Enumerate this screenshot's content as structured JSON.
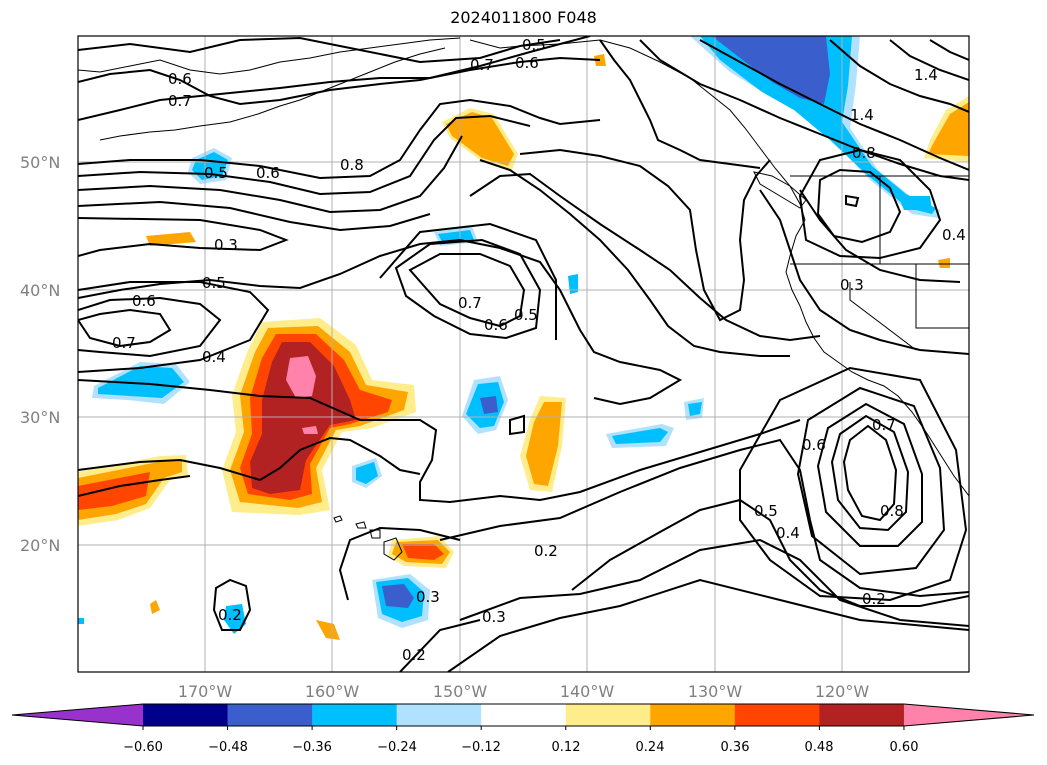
{
  "title": "2024011800 F048",
  "map": {
    "lat_labels": [
      "50°N",
      "40°N",
      "30°N",
      "20°N"
    ],
    "lon_labels": [
      "170°W",
      "160°W",
      "150°W",
      "140°W",
      "130°W",
      "120°W"
    ],
    "contour_labels": [
      "0.5",
      "0.6",
      "0.7",
      "0.6",
      "0.7",
      "0.5",
      "0.6",
      "0.8",
      "1.4",
      "1.4",
      "0.8",
      "0.4",
      "0.3",
      "0.5",
      "0.6",
      "0.7",
      "0.4",
      "0.7",
      "0.6",
      "0.5",
      "0.3",
      "0.6",
      "0.7",
      "0.5",
      "0.8",
      "0.4",
      "0.2",
      "0.2",
      "0.3",
      "0.3",
      "0.2",
      "0.2"
    ]
  },
  "colorbar": {
    "tick_labels": [
      "−0.60",
      "−0.48",
      "−0.36",
      "−0.24",
      "−0.12",
      "0.12",
      "0.24",
      "0.36",
      "0.48",
      "0.60"
    ],
    "colors": [
      "#9932cc",
      "#00008b",
      "#3a5fcd",
      "#00bfff",
      "#b0e2ff",
      "#ffffff",
      "#ffec8b",
      "#ffa500",
      "#ff4500",
      "#b22222",
      "#ff82ab"
    ]
  }
}
